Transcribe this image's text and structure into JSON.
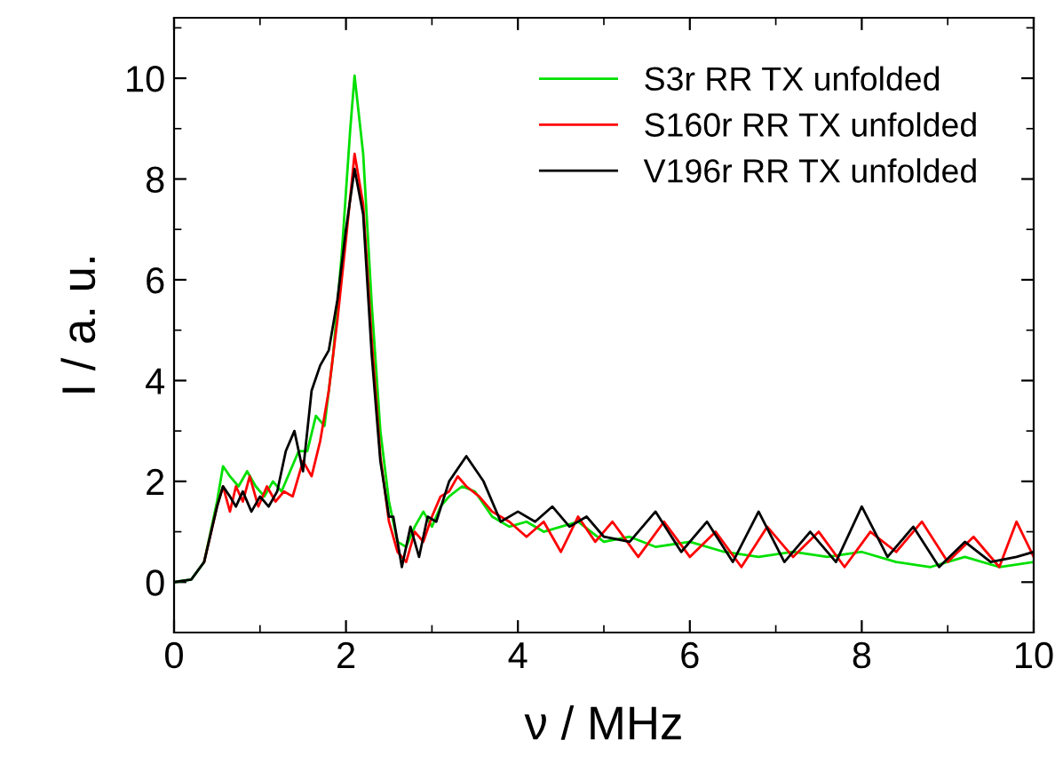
{
  "chart_data": {
    "type": "line",
    "xlabel": "ν / MHz",
    "ylabel": "I / a. u.",
    "xlim": [
      0,
      10
    ],
    "xticks": [
      0,
      2,
      4,
      6,
      8,
      10
    ],
    "ylim": [
      -1,
      11.2
    ],
    "yticks": [
      0,
      2,
      4,
      6,
      8,
      10
    ],
    "grid": false,
    "legend": "top right",
    "marker": "none",
    "line_style": "solid",
    "series": [
      {
        "name": "S3r RR TX unfolded",
        "color": "#00e000",
        "x": [
          0,
          0.2,
          0.35,
          0.5,
          0.57,
          0.65,
          0.75,
          0.85,
          0.95,
          1.05,
          1.15,
          1.25,
          1.35,
          1.45,
          1.55,
          1.65,
          1.75,
          1.85,
          1.95,
          2.05,
          2.1,
          2.2,
          2.3,
          2.4,
          2.5,
          2.6,
          2.7,
          2.8,
          2.9,
          3.0,
          3.1,
          3.2,
          3.35,
          3.5,
          3.7,
          3.9,
          4.1,
          4.3,
          4.5,
          4.7,
          5.0,
          5.3,
          5.6,
          6.0,
          6.4,
          6.8,
          7.2,
          7.6,
          8.0,
          8.4,
          8.8,
          9.2,
          9.6,
          10
        ],
        "values": [
          0,
          0.05,
          0.4,
          1.6,
          2.3,
          2.1,
          1.9,
          2.2,
          1.9,
          1.7,
          2.0,
          1.8,
          2.2,
          2.6,
          2.6,
          3.3,
          3.1,
          4.5,
          6.5,
          9.0,
          10.05,
          8.5,
          5.5,
          3.0,
          1.6,
          0.8,
          0.7,
          1.1,
          1.4,
          1.1,
          1.5,
          1.7,
          1.9,
          1.8,
          1.3,
          1.1,
          1.2,
          1.0,
          1.1,
          1.2,
          0.8,
          0.9,
          0.7,
          0.8,
          0.6,
          0.5,
          0.6,
          0.5,
          0.6,
          0.4,
          0.3,
          0.5,
          0.3,
          0.4
        ]
      },
      {
        "name": "S160r RR TX unfolded",
        "color": "#ff0000",
        "x": [
          0.35,
          0.5,
          0.57,
          0.65,
          0.72,
          0.8,
          0.88,
          0.98,
          1.08,
          1.18,
          1.28,
          1.38,
          1.5,
          1.6,
          1.7,
          1.8,
          1.9,
          2.0,
          2.1,
          2.2,
          2.3,
          2.4,
          2.5,
          2.6,
          2.7,
          2.8,
          2.9,
          3.0,
          3.1,
          3.2,
          3.3,
          3.4,
          3.55,
          3.7,
          3.9,
          4.1,
          4.3,
          4.5,
          4.7,
          4.9,
          5.1,
          5.4,
          5.7,
          6.0,
          6.3,
          6.6,
          6.9,
          7.2,
          7.5,
          7.8,
          8.1,
          8.4,
          8.7,
          9.0,
          9.3,
          9.6,
          9.8,
          10
        ],
        "values": [
          0.4,
          1.5,
          1.9,
          1.4,
          1.9,
          1.6,
          2.1,
          1.5,
          1.9,
          1.6,
          1.8,
          1.7,
          2.4,
          2.1,
          2.8,
          3.8,
          5.2,
          6.8,
          8.5,
          7.5,
          4.8,
          2.5,
          1.2,
          0.6,
          0.4,
          1.0,
          0.8,
          1.3,
          1.7,
          1.8,
          2.1,
          1.9,
          1.7,
          1.4,
          1.2,
          0.9,
          1.2,
          0.6,
          1.3,
          0.8,
          1.2,
          0.5,
          1.2,
          0.5,
          1.0,
          0.3,
          1.1,
          0.5,
          1.0,
          0.3,
          1.0,
          0.6,
          1.2,
          0.4,
          0.9,
          0.3,
          1.2,
          0.5
        ]
      },
      {
        "name": "V196r RR TX unfolded",
        "color": "#000000",
        "x": [
          0,
          0.2,
          0.35,
          0.5,
          0.57,
          0.65,
          0.72,
          0.8,
          0.9,
          1.0,
          1.1,
          1.2,
          1.3,
          1.4,
          1.5,
          1.6,
          1.7,
          1.8,
          1.9,
          2.0,
          2.1,
          2.2,
          2.3,
          2.4,
          2.5,
          2.55,
          2.65,
          2.75,
          2.85,
          2.95,
          3.05,
          3.2,
          3.4,
          3.6,
          3.8,
          4.0,
          4.2,
          4.4,
          4.6,
          4.8,
          5.0,
          5.3,
          5.6,
          5.9,
          6.2,
          6.5,
          6.8,
          7.1,
          7.4,
          7.7,
          8.0,
          8.3,
          8.6,
          8.9,
          9.2,
          9.5,
          9.8,
          10
        ],
        "values": [
          0,
          0.05,
          0.4,
          1.5,
          1.9,
          1.7,
          1.5,
          1.8,
          1.4,
          1.7,
          1.5,
          1.8,
          2.6,
          3.0,
          2.2,
          3.8,
          4.3,
          4.6,
          5.6,
          7.0,
          8.2,
          7.3,
          4.5,
          2.4,
          1.3,
          1.3,
          0.3,
          1.1,
          0.5,
          1.3,
          1.2,
          2.0,
          2.5,
          2.0,
          1.2,
          1.4,
          1.2,
          1.5,
          1.1,
          1.3,
          0.9,
          0.8,
          1.4,
          0.6,
          1.2,
          0.4,
          1.4,
          0.4,
          1.0,
          0.4,
          1.5,
          0.5,
          1.1,
          0.3,
          0.8,
          0.4,
          0.5,
          0.6
        ]
      }
    ]
  }
}
